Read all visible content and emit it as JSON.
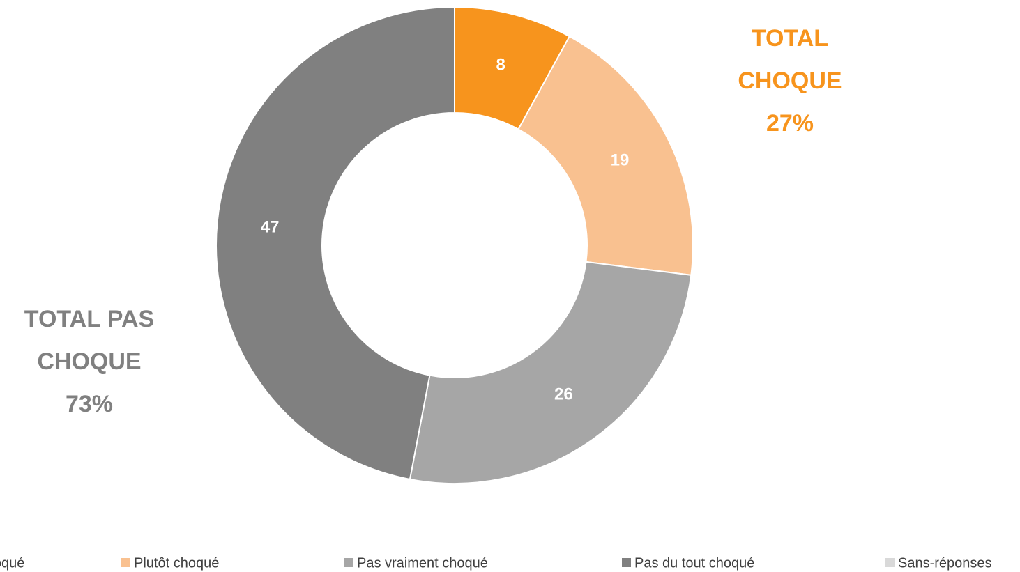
{
  "chart_data": {
    "type": "donut",
    "categories": [
      "Très choqué",
      "Plutôt choqué",
      "Pas vraiment choqué",
      "Pas du tout choqué",
      "Sans-réponses"
    ],
    "values": [
      8,
      19,
      26,
      47,
      0
    ],
    "colors": [
      "#f7941d",
      "#f9c190",
      "#a6a6a6",
      "#808080",
      "#d9d9d9"
    ],
    "legend": "bottom",
    "annotations": [
      {
        "lines": [
          "TOTAL",
          "CHOQUE",
          "27%"
        ],
        "color": "#f7941d"
      },
      {
        "lines": [
          "TOTAL PAS",
          "CHOQUE",
          "73%"
        ],
        "color": "#808080"
      }
    ]
  }
}
